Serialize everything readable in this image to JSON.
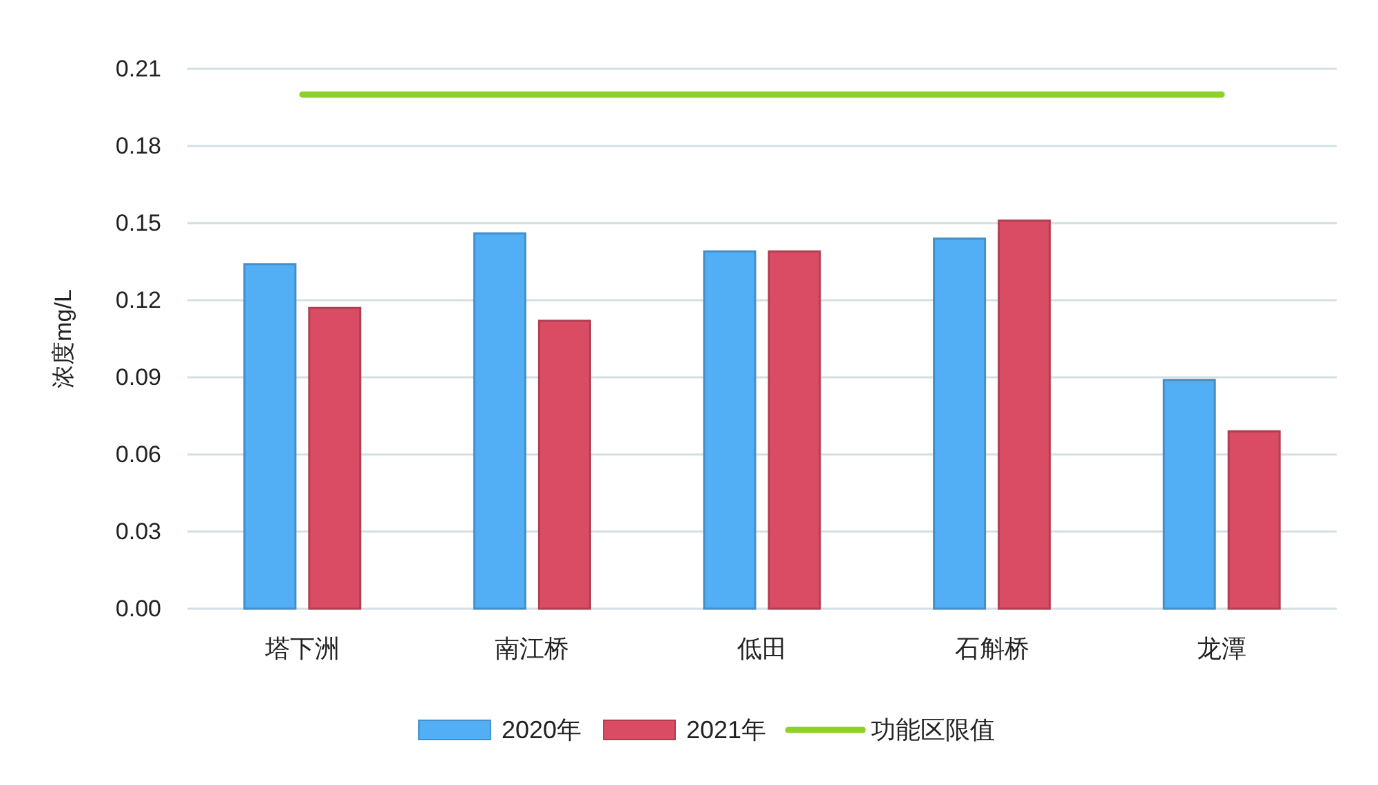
{
  "chart_data": {
    "type": "bar",
    "ylabel": "浓度mg/L",
    "categories": [
      "塔下洲",
      "南江桥",
      "低田",
      "石斛桥",
      "龙潭"
    ],
    "series": [
      {
        "name": "2020年",
        "color": "#52aef5",
        "values": [
          0.134,
          0.146,
          0.139,
          0.144,
          0.089
        ]
      },
      {
        "name": "2021年",
        "color": "#d94c64",
        "values": [
          0.117,
          0.112,
          0.139,
          0.151,
          0.069
        ]
      },
      {
        "name": "功能区限值",
        "type": "line",
        "color": "#8fd12c",
        "values": [
          0.2,
          0.2,
          0.2,
          0.2,
          0.2
        ]
      }
    ],
    "ylim": [
      0,
      0.21
    ],
    "yticks": [
      {
        "value": 0,
        "label": "0.00"
      },
      0.03,
      0.06,
      0.09,
      0.12,
      0.15,
      0.18,
      0.21
    ],
    "grid": "y",
    "legend": "bottom"
  }
}
